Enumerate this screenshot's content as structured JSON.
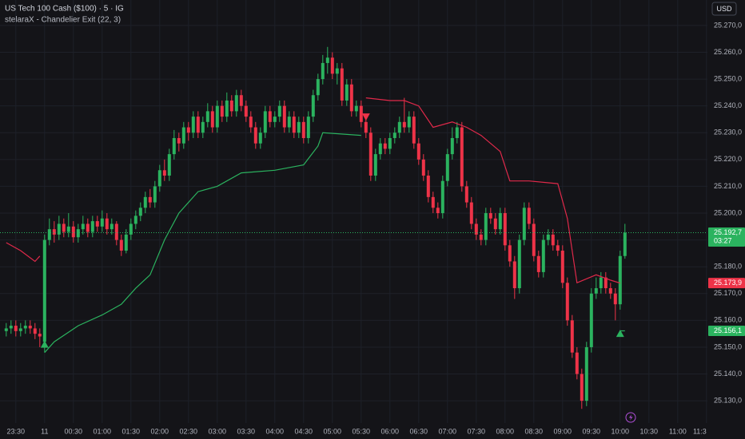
{
  "chart_data": {
    "type": "candlestick",
    "title": "US Tech 100 Cash ($100) · 5 · IG",
    "subtitle": "stelaraX - Chandelier Exit (22, 3)",
    "currency": "USD",
    "up_color": "#2bb35f",
    "down_color": "#ee3348",
    "grid": true,
    "xlim": [
      -1.3,
      146.2
    ],
    "ylim": [
      25121.7,
      25279.5
    ],
    "xticks": [
      {
        "value": 2,
        "label": "23:30"
      },
      {
        "value": 8,
        "label": "11"
      },
      {
        "value": 14,
        "label": "00:30"
      },
      {
        "value": 20,
        "label": "01:00"
      },
      {
        "value": 26,
        "label": "01:30"
      },
      {
        "value": 32,
        "label": "02:00"
      },
      {
        "value": 38,
        "label": "02:30"
      },
      {
        "value": 44,
        "label": "03:00"
      },
      {
        "value": 50,
        "label": "03:30"
      },
      {
        "value": 56,
        "label": "04:00"
      },
      {
        "value": 62,
        "label": "04:30"
      },
      {
        "value": 68,
        "label": "05:00"
      },
      {
        "value": 74,
        "label": "05:30"
      },
      {
        "value": 80,
        "label": "06:00"
      },
      {
        "value": 86,
        "label": "06:30"
      },
      {
        "value": 92,
        "label": "07:00"
      },
      {
        "value": 98,
        "label": "07:30"
      },
      {
        "value": 104,
        "label": "08:00"
      },
      {
        "value": 110,
        "label": "08:30"
      },
      {
        "value": 116,
        "label": "09:00"
      },
      {
        "value": 122,
        "label": "09:30"
      },
      {
        "value": 128,
        "label": "10:00"
      },
      {
        "value": 134,
        "label": "10:30"
      },
      {
        "value": 140,
        "label": "11:00"
      },
      {
        "value": 146,
        "label": "11:3"
      }
    ],
    "yticks": [
      {
        "value": 25130,
        "label": "25.130,0"
      },
      {
        "value": 25140,
        "label": "25.140,0"
      },
      {
        "value": 25150,
        "label": "25.150,0"
      },
      {
        "value": 25160,
        "label": "25.160,0"
      },
      {
        "value": 25170,
        "label": "25.170,0"
      },
      {
        "value": 25180,
        "label": "25.180,0"
      },
      {
        "value": 25190,
        "label": "25.190,0"
      },
      {
        "value": 25200,
        "label": "25.200,0"
      },
      {
        "value": 25210,
        "label": "25.210,0"
      },
      {
        "value": 25220,
        "label": "25.220,0"
      },
      {
        "value": 25230,
        "label": "25.230,0"
      },
      {
        "value": 25240,
        "label": "25.240,0"
      },
      {
        "value": 25250,
        "label": "25.250,0"
      },
      {
        "value": 25260,
        "label": "25.260,0"
      },
      {
        "value": 25270,
        "label": "25.270,0"
      }
    ],
    "open": [
      25156,
      25157,
      25158,
      25156,
      25157,
      25158,
      25157,
      25155,
      25152,
      25190,
      25194,
      25192,
      25196,
      25193,
      25195,
      25191,
      25194,
      25196,
      25193,
      25197,
      25195,
      25198,
      25194,
      25196,
      25190,
      25186,
      25192,
      25196,
      25199,
      25202,
      25206,
      25204,
      25210,
      25216,
      25214,
      25222,
      25228,
      25226,
      25232,
      25230,
      25236,
      25230,
      25234,
      25238,
      25232,
      25240,
      25236,
      25242,
      25238,
      25244,
      25240,
      25236,
      25232,
      25226,
      25230,
      25238,
      25234,
      25236,
      25240,
      25232,
      25236,
      25230,
      25234,
      25228,
      25236,
      25244,
      25250,
      25256,
      25258,
      25252,
      25254,
      25242,
      25248,
      25238,
      25240,
      25234,
      25230,
      25214,
      25222,
      25226,
      25224,
      25228,
      25230,
      25234,
      25232,
      25236,
      25226,
      25220,
      25214,
      25206,
      25202,
      25200,
      25212,
      25222,
      25228,
      25232,
      25210,
      25204,
      25196,
      25192,
      25190,
      25200,
      25198,
      25194,
      25200,
      25188,
      25182,
      25172,
      25190,
      25202,
      25196,
      25184,
      25178,
      25190,
      25192,
      25188,
      25186,
      25174,
      25160,
      25148,
      25140,
      25130,
      25150,
      25170,
      25172,
      25176,
      25172,
      25170,
      25166,
      25184
    ],
    "high": [
      25159,
      25160,
      25160,
      25159,
      25160,
      25160,
      25159,
      25157,
      25192,
      25198,
      25197,
      25199,
      25198,
      25200,
      25197,
      25196,
      25199,
      25198,
      25199,
      25199,
      25201,
      25200,
      25198,
      25197,
      25192,
      25194,
      25198,
      25201,
      25204,
      25208,
      25209,
      25212,
      25218,
      25220,
      25224,
      25231,
      25230,
      25234,
      25234,
      25238,
      25238,
      25236,
      25241,
      25240,
      25242,
      25242,
      25245,
      25244,
      25246,
      25246,
      25242,
      25238,
      25234,
      25232,
      25240,
      25240,
      25238,
      25242,
      25242,
      25238,
      25238,
      25236,
      25236,
      25238,
      25246,
      25252,
      25259,
      25262,
      25260,
      25256,
      25256,
      25250,
      25250,
      25242,
      25242,
      25236,
      25232,
      25224,
      25228,
      25228,
      25230,
      25232,
      25236,
      25243,
      25238,
      25238,
      25228,
      25222,
      25216,
      25208,
      25204,
      25214,
      25224,
      25232,
      25234,
      25234,
      25212,
      25206,
      25198,
      25194,
      25202,
      25202,
      25200,
      25202,
      25202,
      25190,
      25184,
      25192,
      25204,
      25204,
      25198,
      25186,
      25192,
      25194,
      25194,
      25190,
      25188,
      25176,
      25162,
      25150,
      25142,
      25152,
      25172,
      25176,
      25178,
      25178,
      25174,
      25172,
      25186,
      25196
    ],
    "low": [
      25154,
      25155,
      25154,
      25154,
      25155,
      25155,
      25153,
      25150,
      25148,
      25188,
      25189,
      25190,
      25191,
      25191,
      25189,
      25189,
      25192,
      25191,
      25191,
      25193,
      25193,
      25192,
      25192,
      25188,
      25184,
      25185,
      25190,
      25194,
      25197,
      25200,
      25202,
      25202,
      25208,
      25212,
      25212,
      25220,
      25223,
      25224,
      25227,
      25228,
      25228,
      25228,
      25232,
      25230,
      25230,
      25234,
      25234,
      25236,
      25236,
      25238,
      25234,
      25230,
      25224,
      25224,
      25228,
      25232,
      25232,
      25234,
      25230,
      25230,
      25228,
      25228,
      25226,
      25226,
      25234,
      25242,
      25248,
      25252,
      25250,
      25248,
      25240,
      25240,
      25236,
      25236,
      25232,
      25228,
      25212,
      25212,
      25220,
      25222,
      25222,
      25226,
      25228,
      25230,
      25230,
      25224,
      25218,
      25212,
      25204,
      25200,
      25198,
      25198,
      25210,
      25220,
      25226,
      25208,
      25202,
      25194,
      25190,
      25188,
      25188,
      25196,
      25192,
      25192,
      25186,
      25180,
      25168,
      25170,
      25188,
      25194,
      25182,
      25176,
      25176,
      25188,
      25186,
      25184,
      25172,
      25158,
      25146,
      25138,
      25127,
      25128,
      25148,
      25168,
      25170,
      25170,
      25168,
      25160,
      25164,
      25183
    ],
    "close": [
      25157,
      25158,
      25156,
      25157,
      25158,
      25157,
      25155,
      25154,
      25190,
      25194,
      25192,
      25196,
      25193,
      25195,
      25191,
      25194,
      25196,
      25193,
      25197,
      25195,
      25198,
      25194,
      25196,
      25190,
      25186,
      25192,
      25196,
      25199,
      25202,
      25206,
      25204,
      25210,
      25216,
      25214,
      25222,
      25228,
      25226,
      25232,
      25230,
      25236,
      25230,
      25234,
      25238,
      25232,
      25240,
      25236,
      25242,
      25238,
      25244,
      25240,
      25236,
      25232,
      25226,
      25230,
      25238,
      25234,
      25236,
      25240,
      25232,
      25236,
      25230,
      25234,
      25228,
      25236,
      25244,
      25250,
      25256,
      25258,
      25252,
      25254,
      25242,
      25248,
      25238,
      25240,
      25234,
      25230,
      25214,
      25222,
      25226,
      25224,
      25228,
      25230,
      25234,
      25232,
      25236,
      25226,
      25220,
      25214,
      25206,
      25202,
      25200,
      25212,
      25222,
      25228,
      25232,
      25210,
      25204,
      25196,
      25192,
      25190,
      25200,
      25198,
      25194,
      25200,
      25188,
      25182,
      25172,
      25190,
      25202,
      25196,
      25184,
      25178,
      25190,
      25192,
      25188,
      25186,
      25174,
      25160,
      25148,
      25140,
      25130,
      25150,
      25170,
      25172,
      25176,
      25172,
      25170,
      25166,
      25184,
      25192.7
    ],
    "lines": [
      {
        "color": "#e0294a",
        "x": [
          0,
          3,
          6,
          7
        ],
        "values": [
          25189,
          25186,
          25182,
          25184
        ]
      },
      {
        "color": "#e0294a",
        "x": [
          75,
          80,
          83,
          86,
          89,
          93,
          96,
          99,
          103,
          105,
          109,
          115,
          117,
          119,
          123,
          126,
          128
        ],
        "values": [
          25243,
          25242,
          25242,
          25240,
          25232,
          25234,
          25232,
          25229,
          25223,
          25212,
          25212,
          25211,
          25198,
          25174,
          25177,
          25175,
          25173.9
        ]
      },
      {
        "color": "#2bb35f",
        "x": [
          8,
          10,
          15,
          20,
          24,
          27,
          30,
          33,
          36,
          40,
          44,
          49,
          56,
          62,
          65,
          66,
          74
        ],
        "values": [
          25148,
          25152,
          25158,
          25162,
          25166,
          25172,
          25177,
          25190,
          25200,
          25208,
          25210,
          25215,
          25216,
          25218,
          25225,
          25230,
          25229
        ]
      },
      {
        "color": "#2bb35f",
        "x": [
          128,
          129
        ],
        "values": [
          25156.1,
          25156.1
        ]
      }
    ],
    "markers": [
      {
        "x": 8,
        "value": 25151,
        "direction": "up",
        "color": "#2bb35f"
      },
      {
        "x": 75,
        "value": 25236,
        "direction": "down",
        "color": "#ee3348"
      },
      {
        "x": 128,
        "value": 25155,
        "direction": "up",
        "color": "#2bb35f"
      }
    ],
    "price_labels": [
      {
        "value": 25192.7,
        "label": "25.192,7",
        "sub": "03:27",
        "color": "#2bb35f"
      },
      {
        "value": 25173.9,
        "label": "25.173,9",
        "color": "#ee3348"
      },
      {
        "value": 25156.1,
        "label": "25.156,1",
        "color": "#2bb35f"
      }
    ]
  }
}
